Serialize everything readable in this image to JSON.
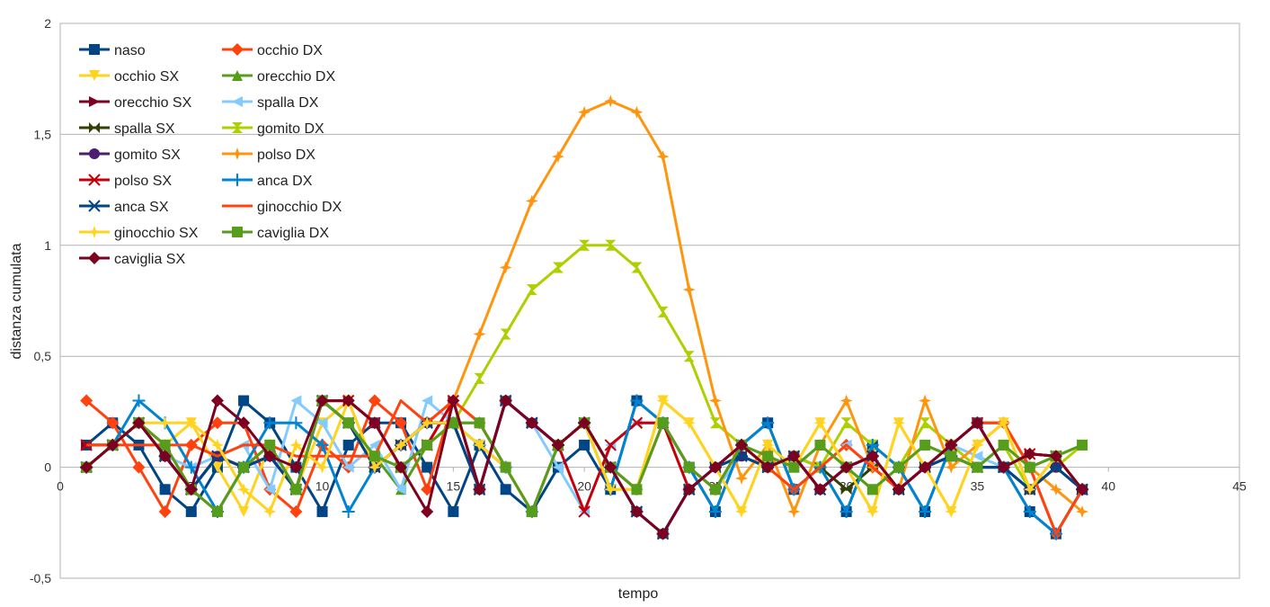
{
  "chart_data": {
    "type": "line",
    "title": "",
    "xlabel": "tempo",
    "ylabel": "distanza cumulata",
    "xlim": [
      0,
      45
    ],
    "ylim": [
      -0.5,
      2
    ],
    "x_ticks": [
      0,
      5,
      10,
      15,
      20,
      25,
      30,
      35,
      40,
      45
    ],
    "y_ticks": [
      -0.5,
      0,
      0.5,
      1,
      1.5,
      2
    ],
    "x_tick_labels": [
      "0",
      "5",
      "10",
      "15",
      "20",
      "25",
      "30",
      "35",
      "40",
      "45"
    ],
    "y_tick_labels": [
      "-0,5",
      "0",
      "0,5",
      "1",
      "1,5",
      "2"
    ],
    "grid": "horizontal",
    "legend_position": "top-left",
    "x": [
      1,
      2,
      3,
      4,
      5,
      6,
      7,
      8,
      9,
      10,
      11,
      12,
      13,
      14,
      15,
      16,
      17,
      18,
      19,
      20,
      21,
      22,
      23,
      24,
      25,
      26,
      27,
      28,
      29,
      30,
      31,
      32,
      33,
      34,
      35,
      36,
      37,
      38,
      39
    ],
    "series": [
      {
        "name": "naso",
        "color": "#004586",
        "marker": "square",
        "values": [
          0.1,
          0.2,
          0.1,
          -0.1,
          -0.2,
          0,
          0.3,
          0.2,
          0,
          -0.2,
          0.1,
          0.2,
          0.2,
          0,
          -0.2,
          0.1,
          -0.1,
          -0.2,
          0,
          0.1,
          -0.1,
          0.3,
          0.2,
          0,
          -0.2,
          0.1,
          0.2,
          -0.1,
          0,
          -0.2,
          0.1,
          0,
          -0.2,
          0.1,
          0.2,
          0,
          -0.2,
          -0.3,
          -0.1
        ]
      },
      {
        "name": "occhio DX",
        "color": "#ff420e",
        "marker": "diamond",
        "values": [
          0.3,
          0.2,
          0,
          -0.2,
          0.1,
          0.2,
          0.2,
          -0.1,
          -0.2,
          0.1,
          0,
          0.3,
          0.2,
          -0.1,
          0.3,
          0.2,
          0,
          -0.2,
          0.1,
          0.2,
          0,
          -0.1,
          0.2,
          0,
          -0.1,
          0.1,
          0,
          -0.1,
          0,
          0.1,
          0,
          -0.1,
          0,
          0.1,
          0.2,
          0.2,
          0,
          -0.3,
          -0.1
        ]
      },
      {
        "name": "occhio SX",
        "color": "#ffd320",
        "marker": "triangle-down",
        "values": [
          0,
          0.1,
          0.2,
          0.1,
          0.2,
          0,
          -0.2,
          0.1,
          -0.1,
          0.2,
          0.3,
          0,
          0.1,
          0.2,
          0.2,
          0.1,
          0,
          -0.2,
          0.1,
          0.2,
          -0.1,
          -0.1,
          0.3,
          0.2,
          0,
          -0.2,
          0.1,
          0,
          0.2,
          0,
          -0.2,
          0.2,
          0,
          -0.2,
          0.1,
          0.2,
          -0.1,
          0.05,
          -0.1
        ]
      },
      {
        "name": "orecchio DX",
        "color": "#579d1c",
        "marker": "triangle-up",
        "values": [
          0,
          0.1,
          0.2,
          0.1,
          -0.1,
          -0.2,
          0,
          0.1,
          -0.1,
          0.3,
          0.2,
          0.05,
          -0.1,
          0.1,
          0.2,
          0.2,
          0,
          -0.2,
          0.1,
          0.2,
          0,
          -0.1,
          0.2,
          0,
          -0.1,
          0.1,
          0.05,
          0,
          0.1,
          0,
          -0.1,
          0,
          0.1,
          0.05,
          0,
          0.1,
          0,
          0.05,
          0.1
        ]
      },
      {
        "name": "orecchio SX",
        "color": "#7e0021",
        "marker": "triangle-right",
        "values": [
          0.1,
          0.1,
          0.2,
          0.05,
          -0.1,
          0.05,
          0,
          0.05,
          -0.1,
          0.3,
          0.3,
          0.2,
          0,
          0.1,
          0.3,
          -0.1,
          0.3,
          0.2,
          0.1,
          0.2,
          0,
          -0.2,
          -0.3,
          -0.1,
          0,
          0.1,
          0,
          0.05,
          -0.1,
          0,
          0.05,
          -0.1,
          0,
          0.1,
          0.2,
          0,
          0.06,
          0.05,
          -0.1
        ]
      },
      {
        "name": "spalla DX",
        "color": "#83caff",
        "marker": "triangle-left",
        "values": [
          0,
          0.1,
          0.2,
          0.05,
          0,
          0.05,
          0.1,
          -0.1,
          0.3,
          0.2,
          0,
          0.1,
          -0.1,
          0.3,
          0.2,
          -0.1,
          0.3,
          0.2,
          0,
          -0.2,
          0.1,
          0.2,
          0.2,
          0,
          -0.1,
          0.05,
          0,
          0.05,
          0,
          0.1,
          0,
          -0.1,
          0,
          0.1,
          0.05,
          0,
          -0.1,
          0.05,
          -0.1
        ]
      },
      {
        "name": "spalla SX",
        "color": "#314004",
        "marker": "bowtie",
        "values": [
          0,
          0.1,
          0.2,
          0.05,
          -0.1,
          0.05,
          0,
          0.05,
          -0.1,
          0.3,
          0.2,
          0,
          0.1,
          0.2,
          0.2,
          -0.1,
          0.3,
          0.2,
          0.1,
          0.2,
          0,
          -0.2,
          -0.3,
          -0.1,
          0,
          0.05,
          0,
          0.05,
          0,
          -0.1,
          0,
          -0.1,
          0,
          0.05,
          0,
          0,
          -0.1,
          0,
          -0.1
        ]
      },
      {
        "name": "gomito DX",
        "color": "#aecf00",
        "marker": "hourglass",
        "values": [
          0,
          0.1,
          0.2,
          0.1,
          -0.1,
          -0.2,
          0,
          0.1,
          -0.1,
          0.3,
          0.2,
          0.05,
          0,
          0.1,
          0.2,
          0.4,
          0.6,
          0.8,
          0.9,
          1,
          1,
          0.9,
          0.7,
          0.5,
          0.2,
          0.1,
          0,
          0.05,
          0,
          0.2,
          0.1,
          0,
          0.2,
          0.1,
          0,
          0.1,
          -0.1,
          0,
          0.1
        ]
      },
      {
        "name": "gomito SX",
        "color": "#4b1f6f",
        "marker": "circle",
        "values": [
          0,
          0.1,
          0.2,
          0.05,
          -0.1,
          0.05,
          0,
          0.05,
          -0.1,
          0.3,
          0.2,
          0,
          0.1,
          0.2,
          0.2,
          -0.1,
          0.3,
          0.2,
          0.1,
          0.2,
          0,
          -0.2,
          -0.3,
          -0.1,
          0,
          0.05,
          0,
          0.05,
          -0.1,
          0,
          0.05,
          -0.1,
          0,
          0.05,
          0,
          0,
          -0.1,
          0,
          -0.1
        ]
      },
      {
        "name": "polso DX",
        "color": "#ff950e",
        "marker": "star4",
        "values": [
          0,
          0.1,
          0.2,
          0.1,
          -0.1,
          -0.2,
          0,
          0.1,
          -0.1,
          0.3,
          0.2,
          0,
          0.1,
          0.2,
          0.3,
          0.6,
          0.9,
          1.2,
          1.4,
          1.6,
          1.65,
          1.6,
          1.4,
          0.8,
          0.3,
          -0.05,
          0.1,
          -0.2,
          0.1,
          0.3,
          0,
          -0.1,
          0.3,
          0,
          0.1,
          0.2,
          0,
          -0.1,
          -0.2
        ]
      },
      {
        "name": "polso SX",
        "color": "#c5000b",
        "marker": "x",
        "values": [
          0.1,
          0.1,
          0.2,
          0.05,
          -0.1,
          0.05,
          0,
          0.05,
          -0.1,
          0.3,
          0.3,
          0.2,
          0,
          0.1,
          0.3,
          -0.1,
          0.3,
          0.2,
          0.1,
          -0.2,
          0.1,
          0.2,
          0.2,
          -0.1,
          0,
          0.1,
          0,
          0.05,
          -0.1,
          0,
          0.05,
          -0.1,
          0,
          0.1,
          0.2,
          0,
          0.06,
          0.05,
          -0.1
        ]
      },
      {
        "name": "anca DX",
        "color": "#0084d1",
        "marker": "plus",
        "values": [
          0,
          0.1,
          0.3,
          0.2,
          0,
          -0.2,
          0,
          0.2,
          0.2,
          0.1,
          -0.2,
          0,
          0.1,
          0.2,
          0.2,
          0.1,
          0,
          -0.2,
          0.1,
          0.2,
          -0.1,
          0.3,
          0.2,
          0,
          -0.2,
          0.1,
          0.2,
          -0.1,
          0,
          -0.2,
          0.1,
          0,
          -0.2,
          0.1,
          0.2,
          0,
          -0.2,
          -0.3,
          -0.1
        ]
      },
      {
        "name": "anca SX",
        "color": "#004586",
        "marker": "asterisk",
        "values": [
          0,
          0.1,
          0.2,
          0.05,
          -0.1,
          0.05,
          0,
          0.05,
          -0.1,
          0.3,
          0.2,
          0,
          0.1,
          0.2,
          0.2,
          -0.1,
          0.3,
          0.2,
          0.1,
          0.2,
          0,
          -0.2,
          -0.3,
          -0.1,
          0,
          0.05,
          0,
          0.05,
          -0.1,
          0,
          0.05,
          -0.1,
          0,
          0.05,
          0,
          0,
          -0.1,
          0,
          -0.1
        ]
      },
      {
        "name": "ginocchio DX",
        "color": "#ff420e",
        "marker": "none",
        "values": [
          0.1,
          0.1,
          0.1,
          0.1,
          0.1,
          0.05,
          0.1,
          0.1,
          0.05,
          0.05,
          0.05,
          0.05,
          0.3,
          0.2,
          0.3,
          0.2,
          0,
          -0.2,
          0.1,
          0.2,
          0,
          -0.1,
          0.2,
          0,
          -0.1,
          0.1,
          0,
          -0.1,
          0,
          0.1,
          0,
          -0.1,
          0,
          0.1,
          0.2,
          0.2,
          0,
          -0.3,
          -0.1
        ]
      },
      {
        "name": "ginocchio SX",
        "color": "#ffd320",
        "marker": "star4",
        "values": [
          0,
          0.1,
          0.2,
          0.2,
          0.2,
          0.1,
          -0.1,
          -0.2,
          0.1,
          0,
          0.3,
          0,
          0.1,
          0.2,
          0.2,
          0.1,
          0,
          -0.2,
          0.1,
          0.2,
          -0.1,
          -0.1,
          0.3,
          0.2,
          0,
          -0.2,
          0.1,
          0,
          0.2,
          0,
          -0.2,
          0.2,
          0,
          -0.2,
          0.1,
          0.2,
          -0.1,
          0.05,
          -0.1
        ]
      },
      {
        "name": "caviglia DX",
        "color": "#579d1c",
        "marker": "square",
        "values": [
          0,
          0.1,
          0.2,
          0.1,
          -0.1,
          -0.2,
          0,
          0.1,
          -0.1,
          0.3,
          0.2,
          0.05,
          0,
          0.1,
          0.2,
          0.2,
          0,
          -0.2,
          0.1,
          0.2,
          0,
          -0.1,
          0.2,
          0,
          -0.1,
          0.1,
          0.05,
          0,
          0.1,
          0,
          -0.1,
          0,
          0.1,
          0.05,
          0,
          0.1,
          0,
          0.05,
          0.1
        ]
      },
      {
        "name": "caviglia SX",
        "color": "#7e0021",
        "marker": "diamond",
        "values": [
          0,
          0.1,
          0.2,
          0.05,
          -0.1,
          0.3,
          0.2,
          0.05,
          0,
          0.3,
          0.3,
          0.2,
          0,
          -0.2,
          0.3,
          -0.1,
          0.3,
          0.2,
          0.1,
          0.2,
          0,
          -0.2,
          -0.3,
          -0.1,
          0,
          0.1,
          0,
          0.05,
          -0.1,
          0,
          0.05,
          -0.1,
          0,
          0.1,
          0.2,
          0,
          0.06,
          0.05,
          -0.1
        ]
      }
    ]
  }
}
